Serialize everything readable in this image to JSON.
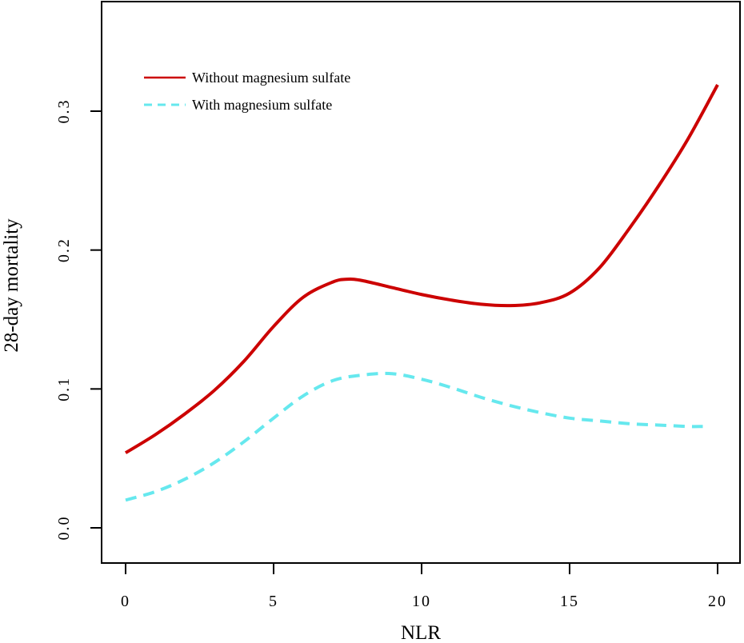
{
  "chart_data": {
    "type": "line",
    "xlabel": "NLR",
    "ylabel": "28-day mortality",
    "xlim": [
      0,
      20
    ],
    "ylim": [
      0,
      0.3
    ],
    "x_ticks": [
      "0",
      "5",
      "10",
      "15",
      "20"
    ],
    "y_ticks": [
      "0.0",
      "0.1",
      "0.2",
      "0.3"
    ],
    "grid": false,
    "legend_position": "top-left",
    "series": [
      {
        "name": "Without magnesium sulfate",
        "color": "#cc0000",
        "dash": "solid",
        "x": [
          0,
          1,
          2,
          3,
          4,
          5,
          6,
          7,
          7.5,
          8,
          9,
          10,
          11,
          12,
          13,
          14,
          15,
          16,
          17,
          18,
          19,
          20
        ],
        "y": [
          0.054,
          0.067,
          0.082,
          0.099,
          0.12,
          0.145,
          0.166,
          0.177,
          0.179,
          0.178,
          0.173,
          0.168,
          0.164,
          0.161,
          0.16,
          0.162,
          0.169,
          0.187,
          0.215,
          0.246,
          0.28,
          0.319
        ]
      },
      {
        "name": "With magnesium sulfate",
        "color": "#66e8ee",
        "dash": "dashed",
        "x": [
          0,
          1,
          2,
          3,
          4,
          5,
          6,
          7,
          8,
          9,
          10,
          11,
          12,
          13,
          14,
          15,
          16,
          17,
          18,
          19,
          19.5
        ],
        "y": [
          0.02,
          0.026,
          0.035,
          0.047,
          0.062,
          0.079,
          0.095,
          0.106,
          0.11,
          0.111,
          0.107,
          0.101,
          0.094,
          0.088,
          0.083,
          0.079,
          0.077,
          0.075,
          0.074,
          0.073,
          0.073
        ]
      }
    ]
  }
}
